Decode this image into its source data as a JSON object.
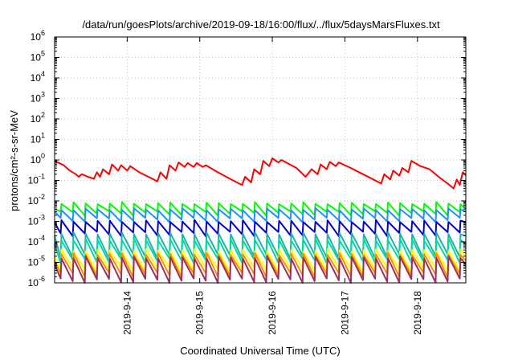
{
  "chart_data": {
    "type": "line",
    "title": "/data/run/goesPlots/archive/2019-09-18/16:00/flux/../flux/5daysMarsFluxes.txt",
    "xlabel": "Coordinated Universal Time (UTC)",
    "ylabel": "protons/cm²-s-sr-MeV",
    "yscale": "log",
    "ylim": [
      1e-06,
      1000000.0
    ],
    "xlim": [
      "2019-09-13T00:00",
      "2019-09-18T16:00"
    ],
    "grid": true,
    "legend": "none",
    "y_ticks": [
      {
        "base": "10",
        "exp": "-6",
        "v": 1e-06
      },
      {
        "base": "10",
        "exp": "-5",
        "v": 1e-05
      },
      {
        "base": "10",
        "exp": "-4",
        "v": 0.0001
      },
      {
        "base": "10",
        "exp": "-3",
        "v": 0.001
      },
      {
        "base": "10",
        "exp": "-2",
        "v": 0.01
      },
      {
        "base": "10",
        "exp": "-1",
        "v": 0.1
      },
      {
        "base": "10",
        "exp": "0",
        "v": 1
      },
      {
        "base": "10",
        "exp": "1",
        "v": 10
      },
      {
        "base": "10",
        "exp": "2",
        "v": 100
      },
      {
        "base": "10",
        "exp": "3",
        "v": 1000
      },
      {
        "base": "10",
        "exp": "4",
        "v": 10000
      },
      {
        "base": "10",
        "exp": "5",
        "v": 100000
      },
      {
        "base": "10",
        "exp": "6",
        "v": 1000000
      }
    ],
    "x_ticks": [
      {
        "label": "2019-9-14",
        "t": "2019-09-14T00:00"
      },
      {
        "label": "2019-9-15",
        "t": "2019-09-15T00:00"
      },
      {
        "label": "2019-9-16",
        "t": "2019-09-16T00:00"
      },
      {
        "label": "2019-9-17",
        "t": "2019-09-17T00:00"
      },
      {
        "label": "2019-9-18",
        "t": "2019-09-18T00:00"
      }
    ],
    "series": [
      {
        "color": "#ff0000",
        "points": [
          [
            "2019-09-13T00:00",
            0.9
          ],
          [
            "2019-09-13T03:00",
            0.55
          ],
          [
            "2019-09-13T05:00",
            0.3
          ],
          [
            "2019-09-13T07:00",
            0.2
          ],
          [
            "2019-09-13T08:00",
            0.15
          ],
          [
            "2019-09-13T09:00",
            0.2
          ],
          [
            "2019-09-13T11:00",
            0.15
          ],
          [
            "2019-09-13T13:00",
            0.12
          ],
          [
            "2019-09-13T14:00",
            0.25
          ],
          [
            "2019-09-13T15:00",
            0.15
          ],
          [
            "2019-09-13T16:00",
            0.35
          ],
          [
            "2019-09-13T18:00",
            0.2
          ],
          [
            "2019-09-13T19:00",
            0.6
          ],
          [
            "2019-09-13T21:00",
            0.3
          ],
          [
            "2019-09-13T22:00",
            0.55
          ],
          [
            "2019-09-14T00:00",
            0.3
          ],
          [
            "2019-09-14T01:00",
            0.5
          ],
          [
            "2019-09-14T04:00",
            0.25
          ],
          [
            "2019-09-14T07:00",
            0.15
          ],
          [
            "2019-09-14T10:00",
            0.09
          ],
          [
            "2019-09-14T11:00",
            0.25
          ],
          [
            "2019-09-14T13:00",
            0.12
          ],
          [
            "2019-09-14T14:00",
            0.55
          ],
          [
            "2019-09-14T16:00",
            0.3
          ],
          [
            "2019-09-14T17:00",
            0.75
          ],
          [
            "2019-09-14T19:00",
            0.45
          ],
          [
            "2019-09-14T20:00",
            0.7
          ],
          [
            "2019-09-14T22:00",
            0.45
          ],
          [
            "2019-09-14T23:00",
            0.7
          ],
          [
            "2019-09-15T01:00",
            0.45
          ],
          [
            "2019-09-15T02:00",
            0.55
          ],
          [
            "2019-09-15T06:00",
            0.25
          ],
          [
            "2019-09-15T10:00",
            0.12
          ],
          [
            "2019-09-15T13:00",
            0.07
          ],
          [
            "2019-09-15T14:00",
            0.06
          ],
          [
            "2019-09-15T15:00",
            0.15
          ],
          [
            "2019-09-15T17:00",
            0.08
          ],
          [
            "2019-09-15T18:00",
            0.35
          ],
          [
            "2019-09-15T20:00",
            0.2
          ],
          [
            "2019-09-15T21:00",
            0.9
          ],
          [
            "2019-09-15T23:00",
            0.5
          ],
          [
            "2019-09-16T00:00",
            1.2
          ],
          [
            "2019-09-16T02:00",
            0.75
          ],
          [
            "2019-09-16T03:00",
            1.0
          ],
          [
            "2019-09-16T08:00",
            0.4
          ],
          [
            "2019-09-16T11:00",
            0.15
          ],
          [
            "2019-09-16T13:00",
            0.35
          ],
          [
            "2019-09-16T15:00",
            0.2
          ],
          [
            "2019-09-16T16:00",
            0.6
          ],
          [
            "2019-09-16T18:00",
            0.35
          ],
          [
            "2019-09-16T19:00",
            0.8
          ],
          [
            "2019-09-16T21:00",
            0.5
          ],
          [
            "2019-09-16T22:00",
            0.75
          ],
          [
            "2019-09-17T02:00",
            0.4
          ],
          [
            "2019-09-17T06:00",
            0.2
          ],
          [
            "2019-09-17T10:00",
            0.1
          ],
          [
            "2019-09-17T12:00",
            0.07
          ],
          [
            "2019-09-17T13:00",
            0.2
          ],
          [
            "2019-09-17T15:00",
            0.11
          ],
          [
            "2019-09-17T16:00",
            0.3
          ],
          [
            "2019-09-17T18:00",
            0.17
          ],
          [
            "2019-09-17T19:00",
            0.4
          ],
          [
            "2019-09-17T21:00",
            0.25
          ],
          [
            "2019-09-17T22:00",
            0.9
          ],
          [
            "2019-09-18T01:00",
            0.5
          ],
          [
            "2019-09-18T04:00",
            0.35
          ],
          [
            "2019-09-18T07:00",
            0.15
          ],
          [
            "2019-09-18T10:00",
            0.07
          ],
          [
            "2019-09-18T12:00",
            0.04
          ],
          [
            "2019-09-18T13:00",
            0.11
          ],
          [
            "2019-09-18T14:00",
            0.06
          ],
          [
            "2019-09-18T15:00",
            0.25
          ],
          [
            "2019-09-18T16:00",
            0.18
          ]
        ]
      },
      {
        "color": "#00ff00",
        "sawtooth": {
          "low": 0.0025,
          "high": 0.009,
          "start": 0.004
        }
      },
      {
        "color": "#1e90ff",
        "sawtooth": {
          "low": 0.0012,
          "high": 0.0045,
          "start": 0.003
        }
      },
      {
        "color": "#0000cd",
        "sawtooth": {
          "low": 0.00025,
          "high": 0.0012,
          "start": 0.0009
        }
      },
      {
        "color": "#20b2aa",
        "sawtooth": {
          "low": 2e-05,
          "high": 0.0003,
          "start": 0.0002
        }
      },
      {
        "color": "#00d9a0",
        "sawtooth": {
          "low": 1.2e-05,
          "high": 0.00015,
          "start": 8e-05
        }
      },
      {
        "color": "#ffff00",
        "sawtooth": {
          "low": 4.5e-06,
          "high": 4.5e-05,
          "start": 2e-05
        }
      },
      {
        "color": "#ff8c00",
        "sawtooth": {
          "low": 2.5e-06,
          "high": 3e-05,
          "start": 1.2e-05
        }
      },
      {
        "color": "#9b3060",
        "sawtooth": {
          "low": 1.3e-06,
          "high": 2e-05,
          "start": 8e-06
        }
      }
    ]
  }
}
